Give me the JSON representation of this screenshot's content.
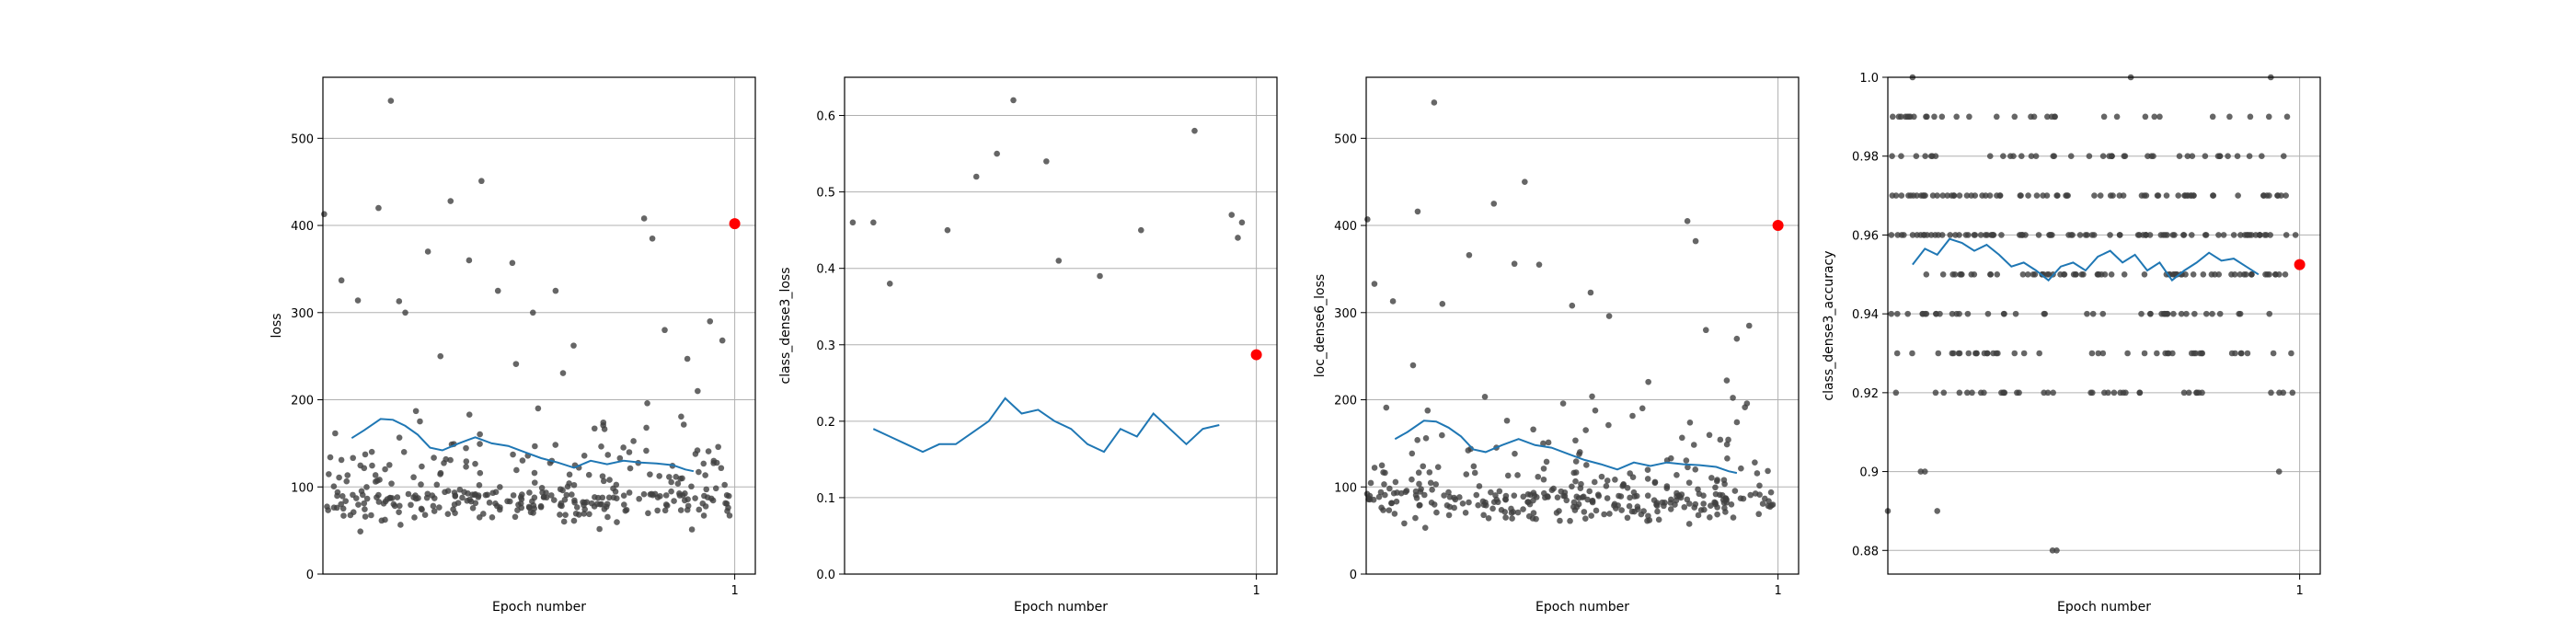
{
  "chart_data": [
    {
      "type": "scatter",
      "title": "",
      "xlabel": "Epoch number",
      "ylabel": "loss",
      "xticks": [
        "1"
      ],
      "ylim": [
        0,
        570
      ],
      "yticks": [
        0,
        100,
        200,
        300,
        400,
        500
      ],
      "grid": "on",
      "legend": "none",
      "scatter_color": "#404040",
      "line_color": "#1f77b4",
      "marker_color": "#ff0000",
      "seed": 11,
      "scatter_summary": {
        "n": 330,
        "typical_low": 45,
        "typical_mode": 90,
        "typical_high": 280
      },
      "outliers": [
        {
          "x": 0.003,
          "y": 413
        },
        {
          "x": 0.045,
          "y": 337
        },
        {
          "x": 0.085,
          "y": 314
        },
        {
          "x": 0.135,
          "y": 420
        },
        {
          "x": 0.165,
          "y": 543
        },
        {
          "x": 0.185,
          "y": 313
        },
        {
          "x": 0.2,
          "y": 300
        },
        {
          "x": 0.255,
          "y": 370
        },
        {
          "x": 0.31,
          "y": 428
        },
        {
          "x": 0.355,
          "y": 360
        },
        {
          "x": 0.385,
          "y": 451
        },
        {
          "x": 0.425,
          "y": 325
        },
        {
          "x": 0.46,
          "y": 357
        },
        {
          "x": 0.51,
          "y": 300
        },
        {
          "x": 0.565,
          "y": 325
        },
        {
          "x": 0.78,
          "y": 408
        },
        {
          "x": 0.8,
          "y": 385
        },
        {
          "x": 0.83,
          "y": 280
        },
        {
          "x": 0.885,
          "y": 247
        },
        {
          "x": 0.91,
          "y": 210
        },
        {
          "x": 0.94,
          "y": 290
        },
        {
          "x": 0.97,
          "y": 268
        }
      ],
      "rolling_mean": [
        {
          "x": 0.07,
          "y": 156
        },
        {
          "x": 0.1,
          "y": 165
        },
        {
          "x": 0.14,
          "y": 178
        },
        {
          "x": 0.17,
          "y": 177
        },
        {
          "x": 0.2,
          "y": 170
        },
        {
          "x": 0.23,
          "y": 160
        },
        {
          "x": 0.26,
          "y": 145
        },
        {
          "x": 0.29,
          "y": 142
        },
        {
          "x": 0.33,
          "y": 150
        },
        {
          "x": 0.37,
          "y": 157
        },
        {
          "x": 0.41,
          "y": 150
        },
        {
          "x": 0.45,
          "y": 147
        },
        {
          "x": 0.49,
          "y": 140
        },
        {
          "x": 0.53,
          "y": 133
        },
        {
          "x": 0.57,
          "y": 128
        },
        {
          "x": 0.61,
          "y": 122
        },
        {
          "x": 0.65,
          "y": 130
        },
        {
          "x": 0.69,
          "y": 126
        },
        {
          "x": 0.73,
          "y": 130
        },
        {
          "x": 0.77,
          "y": 128
        },
        {
          "x": 0.81,
          "y": 127
        },
        {
          "x": 0.85,
          "y": 125
        },
        {
          "x": 0.88,
          "y": 120
        },
        {
          "x": 0.9,
          "y": 118
        }
      ],
      "final_value": {
        "x": 1,
        "y": 402
      }
    },
    {
      "type": "scatter",
      "title": "",
      "xlabel": "Epoch number",
      "ylabel": "class_dense3_loss",
      "xticks": [
        "1"
      ],
      "ylim": [
        0,
        0.65
      ],
      "yticks": [
        0.0,
        0.1,
        0.2,
        0.3,
        0.4,
        0.5,
        0.6
      ],
      "grid": "on",
      "legend": "none",
      "scatter_color": "#404040",
      "line_color": "#1f77b4",
      "marker_color": "#ff0000",
      "seed": 23,
      "scatter_summary": {
        "n": 400,
        "typical_low": 0.01,
        "typical_mode": 0.18,
        "typical_high": 0.42
      },
      "outliers": [
        {
          "x": 0.02,
          "y": 0.46
        },
        {
          "x": 0.07,
          "y": 0.46
        },
        {
          "x": 0.11,
          "y": 0.38
        },
        {
          "x": 0.25,
          "y": 0.45
        },
        {
          "x": 0.32,
          "y": 0.52
        },
        {
          "x": 0.37,
          "y": 0.55
        },
        {
          "x": 0.41,
          "y": 0.62
        },
        {
          "x": 0.49,
          "y": 0.54
        },
        {
          "x": 0.52,
          "y": 0.41
        },
        {
          "x": 0.62,
          "y": 0.39
        },
        {
          "x": 0.72,
          "y": 0.45
        },
        {
          "x": 0.85,
          "y": 0.58
        },
        {
          "x": 0.94,
          "y": 0.47
        },
        {
          "x": 0.955,
          "y": 0.44
        },
        {
          "x": 0.965,
          "y": 0.46
        }
      ],
      "rolling_mean": [
        {
          "x": 0.07,
          "y": 0.19
        },
        {
          "x": 0.11,
          "y": 0.18
        },
        {
          "x": 0.15,
          "y": 0.17
        },
        {
          "x": 0.19,
          "y": 0.16
        },
        {
          "x": 0.23,
          "y": 0.17
        },
        {
          "x": 0.27,
          "y": 0.17
        },
        {
          "x": 0.31,
          "y": 0.185
        },
        {
          "x": 0.35,
          "y": 0.2
        },
        {
          "x": 0.39,
          "y": 0.23
        },
        {
          "x": 0.43,
          "y": 0.21
        },
        {
          "x": 0.47,
          "y": 0.215
        },
        {
          "x": 0.51,
          "y": 0.2
        },
        {
          "x": 0.55,
          "y": 0.19
        },
        {
          "x": 0.59,
          "y": 0.17
        },
        {
          "x": 0.63,
          "y": 0.16
        },
        {
          "x": 0.67,
          "y": 0.19
        },
        {
          "x": 0.71,
          "y": 0.18
        },
        {
          "x": 0.75,
          "y": 0.21
        },
        {
          "x": 0.79,
          "y": 0.19
        },
        {
          "x": 0.83,
          "y": 0.17
        },
        {
          "x": 0.87,
          "y": 0.19
        },
        {
          "x": 0.91,
          "y": 0.195
        }
      ],
      "final_value": {
        "x": 1,
        "y": 0.287
      }
    },
    {
      "type": "scatter",
      "title": "",
      "xlabel": "Epoch number",
      "ylabel": "loc_dense6_loss",
      "xticks": [
        "1"
      ],
      "ylim": [
        0,
        570
      ],
      "yticks": [
        0,
        100,
        200,
        300,
        400,
        500
      ],
      "grid": "on",
      "legend": "none",
      "scatter_color": "#404040",
      "line_color": "#1f77b4",
      "marker_color": "#ff0000",
      "seed": 37,
      "scatter_summary": {
        "n": 330,
        "typical_low": 45,
        "typical_mode": 90,
        "typical_high": 280
      },
      "outliers": [
        {
          "x": 0.003,
          "y": 407
        },
        {
          "x": 0.02,
          "y": 333
        },
        {
          "x": 0.065,
          "y": 313
        },
        {
          "x": 0.125,
          "y": 416
        },
        {
          "x": 0.165,
          "y": 541
        },
        {
          "x": 0.185,
          "y": 310
        },
        {
          "x": 0.25,
          "y": 366
        },
        {
          "x": 0.31,
          "y": 425
        },
        {
          "x": 0.36,
          "y": 356
        },
        {
          "x": 0.385,
          "y": 450
        },
        {
          "x": 0.42,
          "y": 355
        },
        {
          "x": 0.5,
          "y": 308
        },
        {
          "x": 0.545,
          "y": 323
        },
        {
          "x": 0.59,
          "y": 296
        },
        {
          "x": 0.78,
          "y": 405
        },
        {
          "x": 0.8,
          "y": 382
        },
        {
          "x": 0.825,
          "y": 280
        },
        {
          "x": 0.9,
          "y": 270
        },
        {
          "x": 0.93,
          "y": 285
        }
      ],
      "rolling_mean": [
        {
          "x": 0.07,
          "y": 155
        },
        {
          "x": 0.1,
          "y": 163
        },
        {
          "x": 0.14,
          "y": 176
        },
        {
          "x": 0.17,
          "y": 175
        },
        {
          "x": 0.2,
          "y": 168
        },
        {
          "x": 0.23,
          "y": 158
        },
        {
          "x": 0.26,
          "y": 143
        },
        {
          "x": 0.29,
          "y": 140
        },
        {
          "x": 0.33,
          "y": 148
        },
        {
          "x": 0.37,
          "y": 155
        },
        {
          "x": 0.41,
          "y": 148
        },
        {
          "x": 0.45,
          "y": 145
        },
        {
          "x": 0.49,
          "y": 138
        },
        {
          "x": 0.53,
          "y": 131
        },
        {
          "x": 0.57,
          "y": 126
        },
        {
          "x": 0.61,
          "y": 120
        },
        {
          "x": 0.65,
          "y": 128
        },
        {
          "x": 0.69,
          "y": 124
        },
        {
          "x": 0.73,
          "y": 128
        },
        {
          "x": 0.77,
          "y": 126
        },
        {
          "x": 0.81,
          "y": 125
        },
        {
          "x": 0.85,
          "y": 123
        },
        {
          "x": 0.88,
          "y": 118
        },
        {
          "x": 0.9,
          "y": 116
        }
      ],
      "final_value": {
        "x": 1,
        "y": 400
      }
    },
    {
      "type": "scatter",
      "title": "",
      "xlabel": "Epoch number",
      "ylabel": "class_dense3_accuracy",
      "xticks": [
        "1"
      ],
      "ylim": [
        0.874,
        1.0
      ],
      "yticks": [
        0.88,
        0.9,
        0.92,
        0.94,
        0.96,
        0.98,
        1.0
      ],
      "grid": "on",
      "legend": "none",
      "scatter_color": "#404040",
      "line_color": "#1f77b4",
      "marker_color": "#ff0000",
      "seed": 53,
      "scatter_summary": {
        "n": 420,
        "typical_low": 0.92,
        "typical_mode": 0.96,
        "typical_high": 0.99
      },
      "outliers": [
        {
          "x": 0.0,
          "y": 0.89
        },
        {
          "x": 0.12,
          "y": 0.89
        },
        {
          "x": 0.08,
          "y": 0.9
        },
        {
          "x": 0.09,
          "y": 0.9
        },
        {
          "x": 0.4,
          "y": 0.88
        },
        {
          "x": 0.41,
          "y": 0.88
        },
        {
          "x": 0.95,
          "y": 0.9
        },
        {
          "x": 0.06,
          "y": 1.0
        },
        {
          "x": 0.59,
          "y": 1.0
        },
        {
          "x": 0.93,
          "y": 1.0
        }
      ],
      "rolling_mean": [
        {
          "x": 0.06,
          "y": 0.9525
        },
        {
          "x": 0.09,
          "y": 0.9565
        },
        {
          "x": 0.12,
          "y": 0.955
        },
        {
          "x": 0.15,
          "y": 0.959
        },
        {
          "x": 0.18,
          "y": 0.958
        },
        {
          "x": 0.21,
          "y": 0.956
        },
        {
          "x": 0.24,
          "y": 0.9575
        },
        {
          "x": 0.27,
          "y": 0.955
        },
        {
          "x": 0.3,
          "y": 0.952
        },
        {
          "x": 0.33,
          "y": 0.953
        },
        {
          "x": 0.36,
          "y": 0.951
        },
        {
          "x": 0.39,
          "y": 0.9485
        },
        {
          "x": 0.42,
          "y": 0.952
        },
        {
          "x": 0.45,
          "y": 0.953
        },
        {
          "x": 0.48,
          "y": 0.951
        },
        {
          "x": 0.51,
          "y": 0.9545
        },
        {
          "x": 0.54,
          "y": 0.956
        },
        {
          "x": 0.57,
          "y": 0.953
        },
        {
          "x": 0.6,
          "y": 0.955
        },
        {
          "x": 0.63,
          "y": 0.951
        },
        {
          "x": 0.66,
          "y": 0.953
        },
        {
          "x": 0.69,
          "y": 0.9485
        },
        {
          "x": 0.72,
          "y": 0.951
        },
        {
          "x": 0.75,
          "y": 0.953
        },
        {
          "x": 0.78,
          "y": 0.9555
        },
        {
          "x": 0.81,
          "y": 0.9535
        },
        {
          "x": 0.84,
          "y": 0.954
        },
        {
          "x": 0.87,
          "y": 0.952
        },
        {
          "x": 0.9,
          "y": 0.95
        }
      ],
      "final_value": {
        "x": 1,
        "y": 0.9525
      }
    }
  ]
}
